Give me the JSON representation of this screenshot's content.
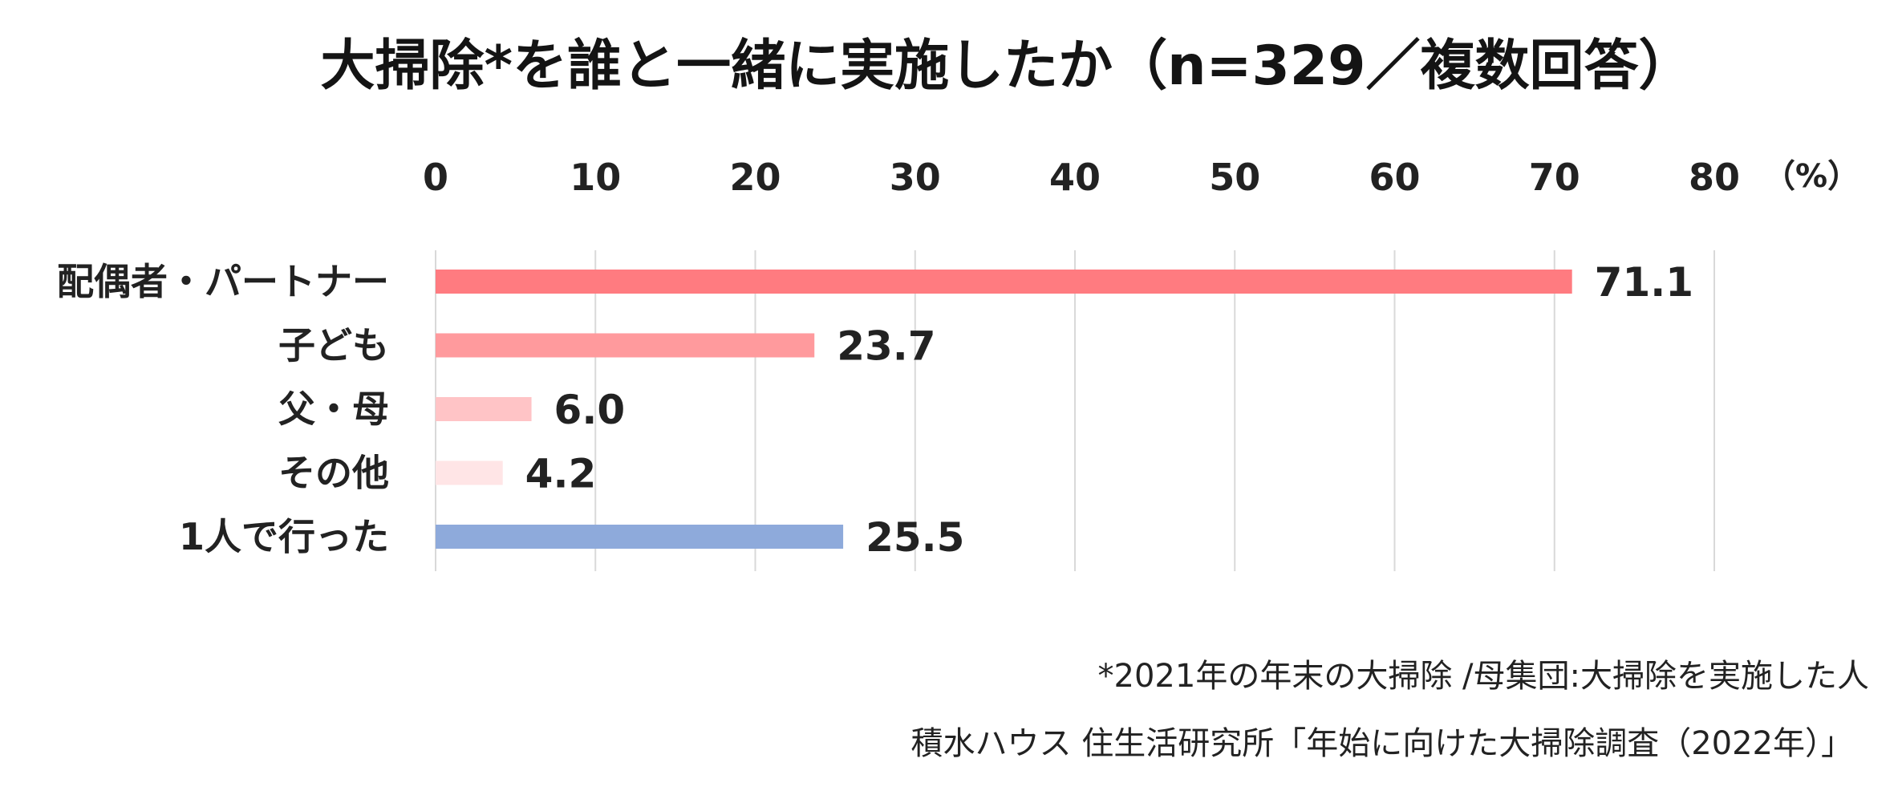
{
  "chart_data": {
    "type": "bar",
    "orientation": "horizontal",
    "title": "大掃除*を誰と一緒に実施したか（n=329／複数回答）",
    "unit_label": "（%）",
    "xlim": [
      0,
      80
    ],
    "ticks": [
      0,
      10,
      20,
      30,
      40,
      50,
      60,
      70,
      80
    ],
    "tick_labels": [
      "0",
      "10",
      "20",
      "30",
      "40",
      "50",
      "60",
      "70",
      "80"
    ],
    "grid": true,
    "categories": [
      "配偶者・パートナー",
      "子ども",
      "父・母",
      "その他",
      "1人で行った"
    ],
    "values": [
      71.1,
      23.7,
      6.0,
      4.2,
      25.5
    ],
    "value_labels": [
      "71.1",
      "23.7",
      "6.0",
      "4.2",
      "25.5"
    ],
    "colors": [
      "#ff7b80",
      "#ff9a9d",
      "#ffc4c6",
      "#ffe5e6",
      "#8eaadb"
    ],
    "notes": [
      "*2021年の年末の大掃除 /母集団:大掃除を実施した人",
      "積水ハウス 住生活研究所「年始に向けた大掃除調査（2022年）」"
    ]
  }
}
